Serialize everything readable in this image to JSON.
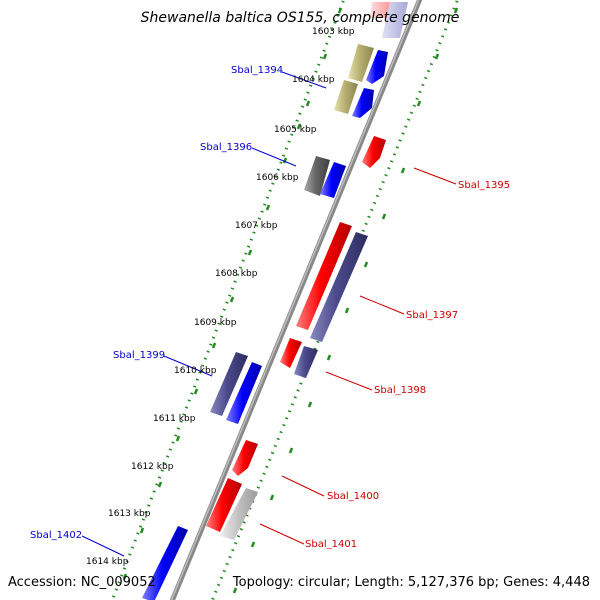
{
  "title": "Shewanella baltica OS155, complete genome",
  "footer": {
    "accession": "Accession: NC_009052",
    "summary": "Topology: circular; Length: 5,127,376 bp; Genes: 4,448"
  },
  "ticks": [
    {
      "label": "1603 kbp"
    },
    {
      "label": "1604 kbp"
    },
    {
      "label": "1605 kbp"
    },
    {
      "label": "1606 kbp"
    },
    {
      "label": "1607 kbp"
    },
    {
      "label": "1608 kbp"
    },
    {
      "label": "1609 kbp"
    },
    {
      "label": "1610 kbp"
    },
    {
      "label": "1611 kbp"
    },
    {
      "label": "1612 kbp"
    },
    {
      "label": "1613 kbp"
    },
    {
      "label": "1614 kbp"
    }
  ],
  "gene_labels": [
    {
      "name": "Sbal_1394",
      "color": "#0000cc"
    },
    {
      "name": "Sbal_1395",
      "color": "#cc0000"
    },
    {
      "name": "Sbal_1396",
      "color": "#0000cc"
    },
    {
      "name": "Sbal_1397",
      "color": "#cc0000"
    },
    {
      "name": "Sbal_1398",
      "color": "#cc0000"
    },
    {
      "name": "Sbal_1399",
      "color": "#0000cc"
    },
    {
      "name": "Sbal_1400",
      "color": "#cc0000"
    },
    {
      "name": "Sbal_1401",
      "color": "#cc0000"
    },
    {
      "name": "Sbal_1402",
      "color": "#0000cc"
    }
  ],
  "colors": {
    "cds_forward": "#0000ff",
    "cds_reverse": "#ff0000",
    "feature_olive": "#b8b070",
    "feature_slate": "#4b4a8c",
    "feature_gray": "#666666",
    "feature_lightgray": "#bbbbbb",
    "backbone": "#888888",
    "tick_dots": "#228b22"
  }
}
